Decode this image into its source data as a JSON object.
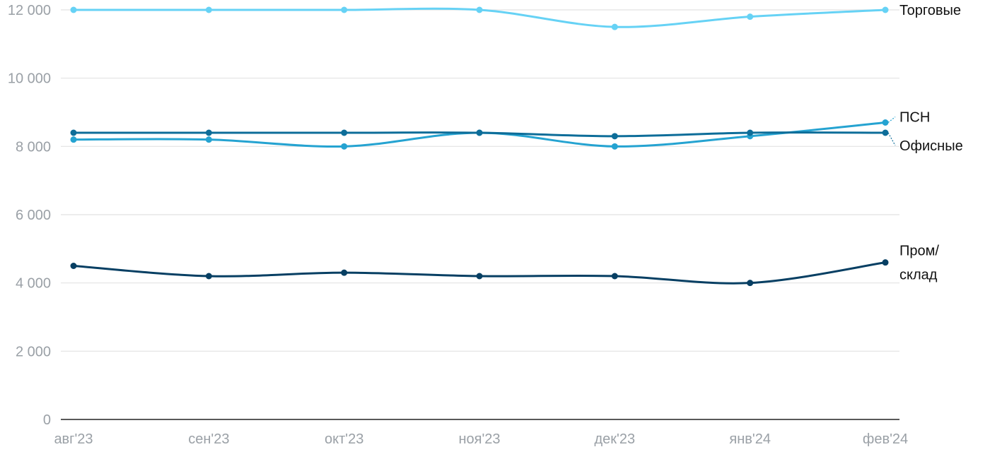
{
  "chart_data": {
    "type": "line",
    "title": "",
    "xlabel": "",
    "ylabel": "",
    "categories": [
      "авг'23",
      "сен'23",
      "окт'23",
      "ноя'23",
      "дек'23",
      "янв'24",
      "фев'24"
    ],
    "ylim": [
      0,
      12000
    ],
    "yticks": [
      {
        "value": 0,
        "label": "0"
      },
      {
        "value": 2000,
        "label": "2 000"
      },
      {
        "value": 4000,
        "label": "4 000"
      },
      {
        "value": 6000,
        "label": "6 000"
      },
      {
        "value": 8000,
        "label": "8 000"
      },
      {
        "value": 10000,
        "label": "10 000"
      },
      {
        "value": 12000,
        "label": "12 000"
      }
    ],
    "grid": true,
    "legend": "inline-right",
    "series": [
      {
        "name": "Торговые",
        "label_lines": [
          "Торговые"
        ],
        "color": "#66d2f5",
        "values": [
          12000,
          12000,
          12000,
          12000,
          11500,
          11800,
          12000
        ]
      },
      {
        "name": "ПСН",
        "label_lines": [
          "ПСН"
        ],
        "color": "#25a3d1",
        "values": [
          8200,
          8200,
          8000,
          8400,
          8000,
          8300,
          8700
        ]
      },
      {
        "name": "Офисные",
        "label_lines": [
          "Офисные"
        ],
        "color": "#0d6d99",
        "values": [
          8400,
          8400,
          8400,
          8400,
          8300,
          8400,
          8400
        ]
      },
      {
        "name": "Пром/склад",
        "label_lines": [
          "Пром/",
          "склад"
        ],
        "color": "#073f63",
        "values": [
          4500,
          4200,
          4300,
          4200,
          4200,
          4000,
          4600
        ]
      }
    ]
  }
}
